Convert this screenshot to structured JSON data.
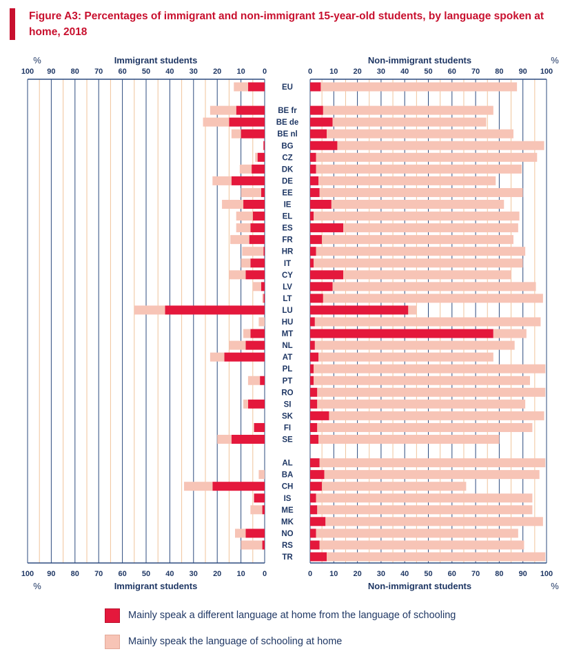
{
  "figure": {
    "title": "Figure A3: Percentages of immigrant and non-immigrant 15-year-old students, by language spoken at home, 2018"
  },
  "chart_data": {
    "type": "bar",
    "orientation": "horizontal",
    "panels": [
      {
        "name": "Immigrant students",
        "direction": "right-to-left",
        "xlim": [
          0,
          100
        ]
      },
      {
        "name": "Non-immigrant students",
        "direction": "left-to-right",
        "xlim": [
          0,
          100
        ]
      }
    ],
    "axis_unit": "%",
    "ticks": [
      0,
      10,
      20,
      30,
      40,
      50,
      60,
      70,
      80,
      90,
      100
    ],
    "grid": "vertical gridlines every 5%",
    "legend_position": "bottom",
    "colors": {
      "different_language": "#e4183c",
      "schooling_language": "#f7c4b6",
      "grid_major": "#2b4a7e",
      "grid_minor": "#f0c39a",
      "text": "#1f3764"
    },
    "series": [
      {
        "name": "Mainly speak a different language at home from the language of schooling",
        "key": "diff"
      },
      {
        "name": "Mainly speak the language of schooling at home",
        "key": "same"
      }
    ],
    "categories": [
      "EU",
      "BE fr",
      "BE de",
      "BE nl",
      "BG",
      "CZ",
      "DK",
      "DE",
      "EE",
      "IE",
      "EL",
      "ES",
      "FR",
      "HR",
      "IT",
      "CY",
      "LV",
      "LT",
      "LU",
      "HU",
      "MT",
      "NL",
      "AT",
      "PL",
      "PT",
      "RO",
      "SI",
      "SK",
      "FI",
      "SE",
      "AL",
      "BA",
      "CH",
      "IS",
      "ME",
      "MK",
      "NO",
      "RS",
      "TR"
    ],
    "groups": [
      [
        "EU"
      ],
      [
        "BE fr",
        "BE de",
        "BE nl",
        "BG",
        "CZ",
        "DK",
        "DE",
        "EE",
        "IE",
        "EL",
        "ES",
        "FR",
        "HR",
        "IT",
        "CY",
        "LV",
        "LT",
        "LU",
        "HU",
        "MT",
        "NL",
        "AT",
        "PL",
        "PT",
        "RO",
        "SI",
        "SK",
        "FI",
        "SE"
      ],
      [
        "AL",
        "BA",
        "CH",
        "IS",
        "ME",
        "MK",
        "NO",
        "RS",
        "TR"
      ]
    ],
    "immigrant": {
      "diff": [
        7,
        12,
        15,
        10,
        0.5,
        3,
        5.5,
        14,
        1.5,
        9,
        5,
        6,
        6.5,
        0.5,
        6,
        8,
        1.5,
        0.5,
        42,
        0,
        6,
        8,
        17,
        0,
        2,
        0,
        7,
        0,
        4.5,
        14,
        0,
        0,
        22,
        4.5,
        1,
        0,
        8,
        1,
        0
      ],
      "same": [
        6,
        11,
        11,
        4,
        0,
        1,
        5,
        8,
        8.5,
        9,
        7,
        6,
        8,
        9,
        4,
        7,
        3.5,
        0.5,
        13,
        2.5,
        3,
        7,
        6,
        0,
        5,
        0,
        2,
        0,
        0,
        6,
        0,
        2.5,
        12,
        0,
        5,
        0,
        4.5,
        9,
        0
      ]
    },
    "non_immigrant": {
      "diff": [
        4.5,
        5.5,
        9.5,
        7,
        11.5,
        2.5,
        2.5,
        3.5,
        4,
        9,
        1.5,
        14,
        5,
        2.5,
        1.5,
        14,
        9.5,
        5.5,
        41.5,
        2,
        77.5,
        2,
        3.5,
        1.5,
        1.5,
        3,
        3,
        8,
        3,
        3.5,
        4,
        6,
        5,
        2.5,
        3,
        6.5,
        2.5,
        4,
        7
      ],
      "same": [
        83,
        72,
        65,
        79,
        87.5,
        93.5,
        87,
        75,
        86,
        73,
        87,
        74,
        81,
        88.5,
        88.5,
        71,
        86,
        93,
        3.5,
        95.5,
        14,
        84.5,
        74,
        98,
        91.5,
        96.5,
        88,
        91,
        91,
        76.5,
        95.5,
        91,
        61,
        91.5,
        91,
        92,
        85.5,
        86.5,
        92.5
      ]
    }
  },
  "legend": {
    "diff_label": "Mainly speak a different language at home from the language of schooling",
    "same_label": "Mainly speak the language of schooling at home"
  }
}
